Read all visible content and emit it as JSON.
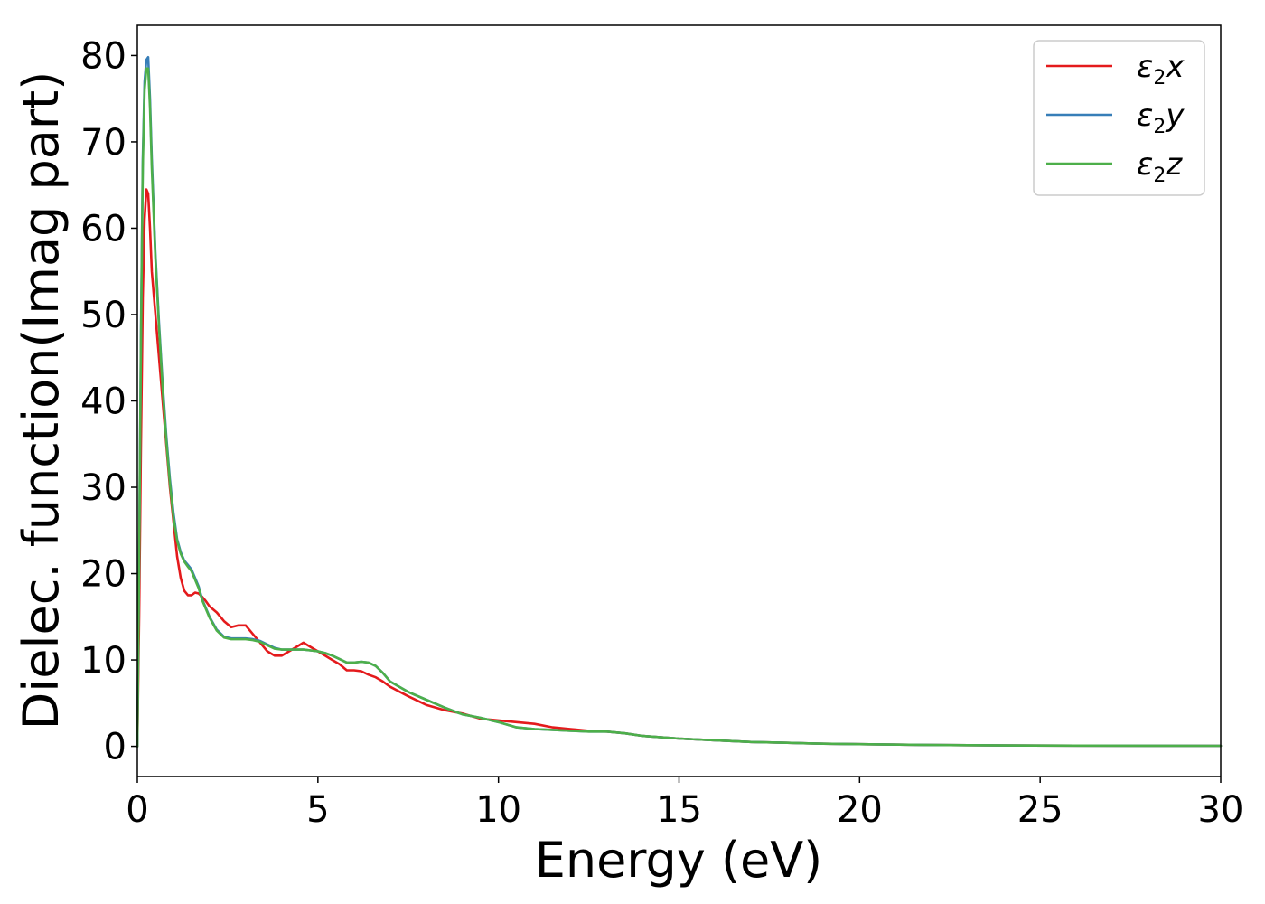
{
  "chart_data": {
    "type": "line",
    "title": "",
    "xlabel": "Energy (eV)",
    "ylabel": "Dielec. function(Imag part)",
    "xlim": [
      0,
      30
    ],
    "ylim": [
      -3.5,
      83.5
    ],
    "xticks": [
      0,
      5,
      10,
      15,
      20,
      25,
      30
    ],
    "xtick_labels": [
      "0",
      "5",
      "10",
      "15",
      "20",
      "25",
      "30"
    ],
    "yticks": [
      0,
      10,
      20,
      30,
      40,
      50,
      60,
      70,
      80
    ],
    "ytick_labels": [
      "0",
      "10",
      "20",
      "30",
      "40",
      "50",
      "60",
      "70",
      "80"
    ],
    "grid": false,
    "legend_position": "top-right",
    "series": [
      {
        "name": "ε2x",
        "legend_base": "ε",
        "legend_sub": "2",
        "legend_tail": "x",
        "color": "#e41a1c",
        "x": [
          0,
          0.05,
          0.1,
          0.15,
          0.2,
          0.25,
          0.3,
          0.35,
          0.4,
          0.5,
          0.6,
          0.7,
          0.8,
          0.9,
          1.0,
          1.1,
          1.2,
          1.3,
          1.4,
          1.5,
          1.6,
          1.7,
          1.8,
          1.9,
          2.0,
          2.2,
          2.4,
          2.6,
          2.8,
          3.0,
          3.2,
          3.4,
          3.6,
          3.8,
          4.0,
          4.2,
          4.4,
          4.6,
          4.8,
          5.0,
          5.2,
          5.4,
          5.6,
          5.8,
          6.0,
          6.2,
          6.4,
          6.6,
          6.8,
          7.0,
          7.5,
          8.0,
          8.5,
          9.0,
          9.5,
          10.0,
          10.5,
          11.0,
          11.5,
          12.0,
          12.5,
          13.0,
          13.5,
          14.0,
          15.0,
          16.0,
          17.0,
          18.0,
          19.0,
          20.0,
          22.0,
          24.0,
          26.0,
          28.0,
          30.0
        ],
        "y": [
          0,
          15,
          35,
          52,
          61,
          64.5,
          64,
          60,
          55,
          50,
          45,
          40,
          35,
          30,
          26,
          22,
          19.5,
          18,
          17.5,
          17.5,
          17.8,
          17.7,
          17.3,
          16.8,
          16.2,
          15.5,
          14.5,
          13.8,
          14,
          14,
          13,
          12,
          11,
          10.5,
          10.5,
          11,
          11.5,
          12,
          11.5,
          11,
          10.5,
          10,
          9.5,
          8.8,
          8.8,
          8.7,
          8.3,
          8,
          7.5,
          6.9,
          5.8,
          4.8,
          4.2,
          3.8,
          3.2,
          3.0,
          2.8,
          2.6,
          2.2,
          2.0,
          1.8,
          1.7,
          1.5,
          1.2,
          0.9,
          0.7,
          0.5,
          0.4,
          0.3,
          0.25,
          0.15,
          0.1,
          0.08,
          0.07,
          0.06
        ]
      },
      {
        "name": "ε2y",
        "legend_base": "ε",
        "legend_sub": "2",
        "legend_tail": "y",
        "color": "#377eb8",
        "x": [
          0,
          0.05,
          0.1,
          0.15,
          0.2,
          0.25,
          0.3,
          0.35,
          0.4,
          0.5,
          0.6,
          0.7,
          0.8,
          0.9,
          1.0,
          1.1,
          1.2,
          1.3,
          1.4,
          1.5,
          1.6,
          1.7,
          1.8,
          1.9,
          2.0,
          2.2,
          2.4,
          2.6,
          2.8,
          3.0,
          3.2,
          3.4,
          3.6,
          3.8,
          4.0,
          4.2,
          4.4,
          4.6,
          4.8,
          5.0,
          5.2,
          5.4,
          5.6,
          5.8,
          6.0,
          6.2,
          6.4,
          6.6,
          6.8,
          7.0,
          7.5,
          8.0,
          8.5,
          9.0,
          9.5,
          10.0,
          10.5,
          11.0,
          11.5,
          12.0,
          12.5,
          13.0,
          13.5,
          14.0,
          15.0,
          16.0,
          17.0,
          18.0,
          19.0,
          20.0,
          22.0,
          24.0,
          26.0,
          28.0,
          30.0
        ],
        "y": [
          0,
          22,
          48,
          68,
          77,
          79.5,
          79.8,
          75,
          68,
          57,
          49,
          42,
          36,
          31,
          27,
          24,
          22.5,
          21.5,
          21,
          20.5,
          19.5,
          18.5,
          17,
          16,
          15,
          13.5,
          12.7,
          12.5,
          12.5,
          12.5,
          12.4,
          12.2,
          11.8,
          11.4,
          11.2,
          11.2,
          11.2,
          11.2,
          11.1,
          11,
          10.8,
          10.5,
          10.1,
          9.7,
          9.7,
          9.8,
          9.7,
          9.3,
          8.5,
          7.5,
          6.3,
          5.4,
          4.5,
          3.7,
          3.3,
          2.8,
          2.2,
          2.0,
          1.9,
          1.8,
          1.7,
          1.7,
          1.5,
          1.2,
          0.9,
          0.7,
          0.5,
          0.4,
          0.3,
          0.25,
          0.15,
          0.1,
          0.08,
          0.07,
          0.06
        ]
      },
      {
        "name": "ε2z",
        "legend_base": "ε",
        "legend_sub": "2",
        "legend_tail": "z",
        "color": "#4daf4a",
        "x": [
          0,
          0.05,
          0.1,
          0.15,
          0.2,
          0.25,
          0.3,
          0.35,
          0.4,
          0.5,
          0.6,
          0.7,
          0.8,
          0.9,
          1.0,
          1.1,
          1.2,
          1.3,
          1.4,
          1.5,
          1.6,
          1.7,
          1.8,
          1.9,
          2.0,
          2.2,
          2.4,
          2.6,
          2.8,
          3.0,
          3.2,
          3.4,
          3.6,
          3.8,
          4.0,
          4.2,
          4.4,
          4.6,
          4.8,
          5.0,
          5.2,
          5.4,
          5.6,
          5.8,
          6.0,
          6.2,
          6.4,
          6.6,
          6.8,
          7.0,
          7.5,
          8.0,
          8.5,
          9.0,
          9.5,
          10.0,
          10.5,
          11.0,
          11.5,
          12.0,
          12.5,
          13.0,
          13.5,
          14.0,
          15.0,
          16.0,
          17.0,
          18.0,
          19.0,
          20.0,
          22.0,
          24.0,
          26.0,
          28.0,
          30.0
        ],
        "y": [
          0,
          21,
          47,
          67,
          76,
          78.5,
          78.5,
          74,
          67,
          56.5,
          48.5,
          41.5,
          35.5,
          30.5,
          26.5,
          23.8,
          22.3,
          21.4,
          20.8,
          20.3,
          19.3,
          18.3,
          16.9,
          15.9,
          14.9,
          13.4,
          12.6,
          12.4,
          12.4,
          12.4,
          12.3,
          12.1,
          11.7,
          11.3,
          11.2,
          11.2,
          11.2,
          11.2,
          11.1,
          11,
          10.8,
          10.5,
          10.1,
          9.7,
          9.7,
          9.8,
          9.7,
          9.3,
          8.5,
          7.5,
          6.3,
          5.4,
          4.5,
          3.7,
          3.3,
          2.8,
          2.2,
          2.0,
          1.9,
          1.8,
          1.7,
          1.7,
          1.5,
          1.2,
          0.9,
          0.7,
          0.5,
          0.4,
          0.3,
          0.25,
          0.15,
          0.1,
          0.08,
          0.07,
          0.06
        ]
      }
    ]
  }
}
